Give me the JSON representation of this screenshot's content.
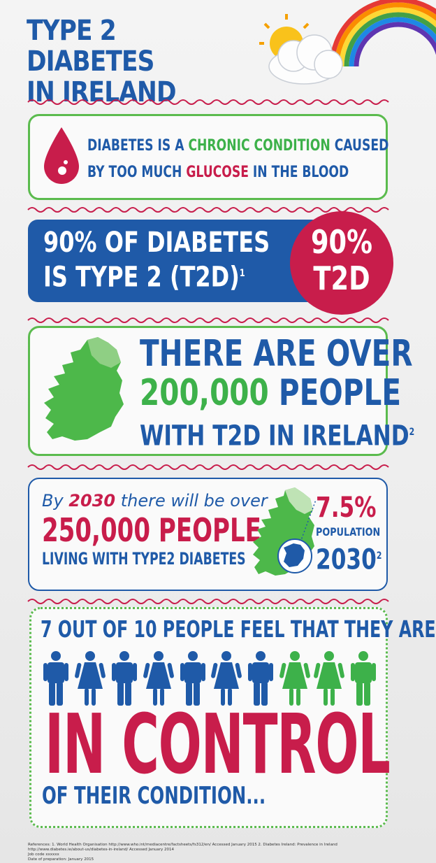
{
  "title": {
    "line1": "TYPE 2 DIABETES",
    "line2": "IN IRELAND"
  },
  "colors": {
    "blue": "#1f5aa8",
    "green": "#3db14a",
    "red": "#c81d4b"
  },
  "fact1": {
    "a": "DIABETES IS A ",
    "b": "CHRONIC CONDITION",
    "c": " CAUSED",
    "d": "BY TOO MUCH ",
    "e": "GLUCOSE",
    "f": " IN THE BLOOD"
  },
  "fact2": {
    "line1": "90% OF DIABETES",
    "line2": "IS TYPE 2 (T2D)",
    "ref": "1",
    "badge_pct": "90%",
    "badge_label": "T2D"
  },
  "fact3": {
    "line1": "THERE ARE OVER",
    "number": "200,000",
    "people": " PEOPLE",
    "line3": "WITH T2D IN IRELAND",
    "ref": "2"
  },
  "fact4": {
    "by": "By ",
    "year": "2030",
    "rest": " there will be over",
    "number": "250,000",
    "people": " PEOPLE",
    "line3": "LIVING WITH TYPE2 DIABETES",
    "pct": "7.5%",
    "population": "POPULATION",
    "stat_year": "2030",
    "ref": "2"
  },
  "fact5": {
    "headline": "7 OUT OF 10 PEOPLE FEEL THAT THEY ARE",
    "control": "IN CONTROL",
    "ending": "OF THEIR CONDITION...",
    "people": [
      "male",
      "female",
      "male",
      "female",
      "male",
      "female",
      "male",
      "female",
      "female",
      "male"
    ],
    "in_control_count": 7
  },
  "references": {
    "line1": "References: 1. World Health Organisation http://www.who.int/mediacentre/factsheets/fs312/en/ Accessed January 2015 2. Diabetes Ireland: Prevalence in Ireland http://www.diabetes.ie/about-us/diabetes-in-ireland/ Accessed January 2014",
    "line2": "Job code xxxxxx",
    "line3": "Date of preparation: January 2015"
  }
}
